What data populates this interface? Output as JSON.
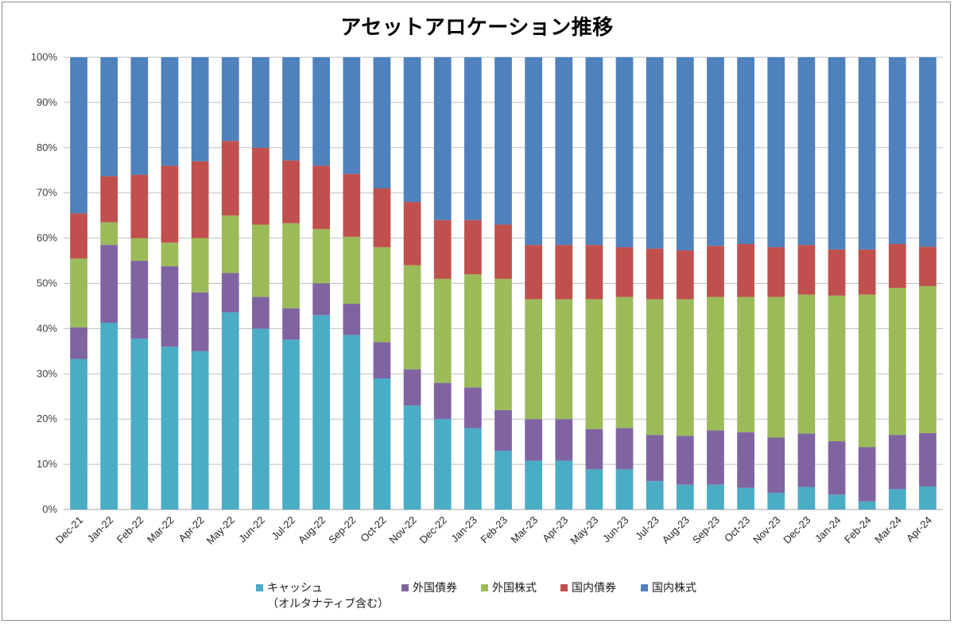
{
  "chart_data": {
    "type": "bar",
    "stacked": true,
    "normalized_percent": true,
    "title": "アセットアロケーション推移",
    "xlabel": "",
    "ylabel": "",
    "ylim": [
      0,
      100
    ],
    "yticks": [
      "0%",
      "10%",
      "20%",
      "30%",
      "40%",
      "50%",
      "60%",
      "70%",
      "80%",
      "90%",
      "100%"
    ],
    "grid": true,
    "legend_position": "bottom",
    "categories": [
      "Dec-21",
      "Jan-22",
      "Feb-22",
      "Mar-22",
      "Apr-22",
      "May-22",
      "Jun-22",
      "Jul-22",
      "Aug-22",
      "Sep-22",
      "Oct-22",
      "Nov-22",
      "Dec-22",
      "Jan-23",
      "Feb-23",
      "Mar-23",
      "Apr-23",
      "May-23",
      "Jun-23",
      "Jul-23",
      "Aug-23",
      "Sep-23",
      "Oct-23",
      "Nov-23",
      "Dec-23",
      "Jan-24",
      "Feb-24",
      "Mar-24",
      "Apr-24"
    ],
    "series": [
      {
        "name": "キャッシュ\n（オルタナティブ含む）",
        "color": "#4bacc6",
        "values": [
          33.3,
          41.3,
          37.8,
          36.0,
          35.0,
          43.6,
          40.0,
          37.6,
          43.0,
          38.6,
          29.0,
          23.0,
          20.0,
          18.0,
          13.0,
          10.8,
          10.8,
          8.9,
          8.9,
          6.3,
          5.5,
          5.5,
          4.8,
          3.7,
          5.0,
          3.3,
          1.8,
          4.5,
          5.1
        ]
      },
      {
        "name": "外国債券",
        "color": "#8064a2",
        "values": [
          7.0,
          17.2,
          17.2,
          17.8,
          13.0,
          8.7,
          7.0,
          6.9,
          7.0,
          6.9,
          8.0,
          8.0,
          8.0,
          9.0,
          9.0,
          9.2,
          9.2,
          8.9,
          9.1,
          10.2,
          10.8,
          12.0,
          12.3,
          12.2,
          11.8,
          11.8,
          12.0,
          12.0,
          11.8
        ]
      },
      {
        "name": "外国株式",
        "color": "#9bbb59",
        "values": [
          15.2,
          5.0,
          5.0,
          5.2,
          12.0,
          12.7,
          16.0,
          18.8,
          12.0,
          14.8,
          21.0,
          23.0,
          23.0,
          25.0,
          29.0,
          26.5,
          26.5,
          28.7,
          29.0,
          30.0,
          30.2,
          29.5,
          29.9,
          31.1,
          30.7,
          32.2,
          33.7,
          32.5,
          32.5
        ]
      },
      {
        "name": "国内債券",
        "color": "#c0504d",
        "values": [
          10.0,
          10.2,
          14.0,
          17.0,
          17.0,
          16.5,
          17.0,
          13.9,
          14.0,
          13.9,
          13.0,
          14.0,
          13.0,
          12.0,
          12.0,
          12.0,
          12.0,
          12.0,
          11.0,
          11.2,
          10.8,
          11.3,
          11.7,
          11.0,
          11.0,
          10.2,
          10.0,
          9.7,
          8.7
        ]
      },
      {
        "name": "国内株式",
        "color": "#4f81bd",
        "values": [
          34.5,
          26.3,
          26.0,
          24.0,
          23.0,
          18.5,
          20.0,
          22.8,
          24.0,
          25.8,
          29.0,
          32.0,
          36.0,
          36.0,
          37.0,
          41.5,
          41.5,
          41.5,
          42.0,
          42.3,
          42.7,
          41.7,
          41.3,
          42.0,
          41.5,
          42.5,
          42.5,
          41.3,
          41.9
        ]
      }
    ]
  }
}
